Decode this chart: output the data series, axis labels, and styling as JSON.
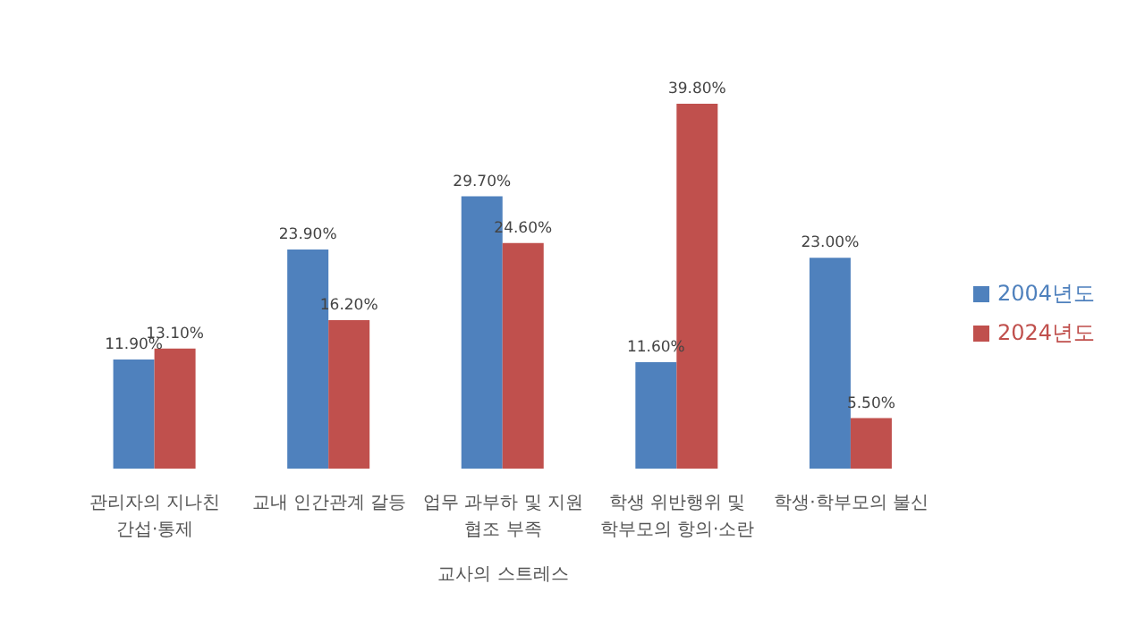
{
  "chart_data": {
    "type": "bar",
    "xlabel": "교사의 스트레스",
    "categories": [
      "관리자의 지나친 간섭·통제",
      "교내 인간관계 갈등",
      "업무 과부하 및 지원 협조 부족",
      "학생 위반행위 및 학부모의 항의·소란",
      "학생·학부모의 불신"
    ],
    "series": [
      {
        "name": "2004년도",
        "color": "#4f81bd",
        "values": [
          11.9,
          23.9,
          29.7,
          11.6,
          23.0
        ],
        "value_labels": [
          "11.90%",
          "23.90%",
          "29.70%",
          "11.60%",
          "23.00%"
        ]
      },
      {
        "name": "2024년도",
        "color": "#c0504d",
        "values": [
          13.1,
          16.2,
          24.6,
          39.8,
          5.5
        ],
        "value_labels": [
          "13.10%",
          "16.20%",
          "24.60%",
          "39.80%",
          "5.50%"
        ]
      }
    ],
    "legend": "right",
    "grid": false
  }
}
